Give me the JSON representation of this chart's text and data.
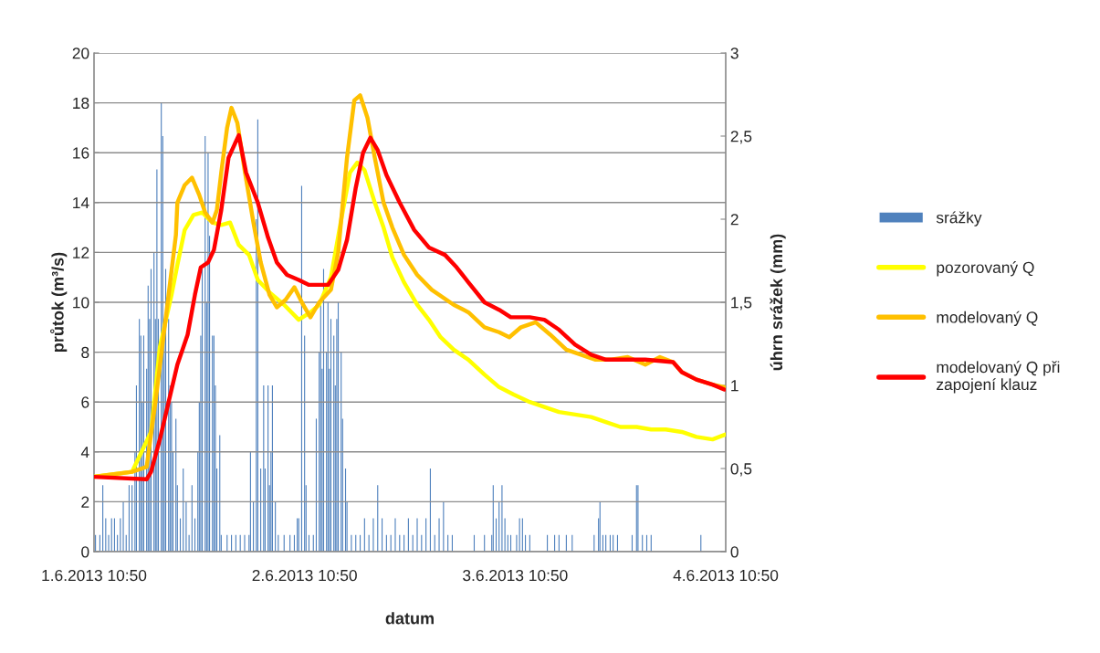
{
  "chart_data": {
    "type": "line",
    "xlabel": "datum",
    "ylabel": "průtok (m³/s)",
    "y2label": "úhrn srážek (mm)",
    "xlim": [
      "2013-06-01T10:50",
      "2013-06-04T10:50"
    ],
    "xticks": [
      {
        "value": "2013-06-01T10:50",
        "label": "1.6.2013 10:50"
      },
      {
        "value": "2013-06-02T10:50",
        "label": "2.6.2013 10:50"
      },
      {
        "value": "2013-06-03T10:50",
        "label": "3.6.2013 10:50"
      },
      {
        "value": "2013-06-04T10:50",
        "label": "4.6.2013 10:50"
      }
    ],
    "ylim": [
      0,
      20
    ],
    "yticks": [
      0,
      2,
      4,
      6,
      8,
      10,
      12,
      14,
      16,
      18,
      20
    ],
    "y2lim": [
      0,
      3
    ],
    "y2ticks": [
      0,
      {
        "value": 0.5,
        "label": "0,5"
      },
      1,
      {
        "value": 1.5,
        "label": "1,5"
      },
      2,
      {
        "value": 2.5,
        "label": "2,5"
      },
      3
    ],
    "grid": "y",
    "legend": "right",
    "series": [
      {
        "name": "srážky",
        "type": "bar",
        "axis": "y2",
        "color": "#4f81bd",
        "x": [
          "2013-06-01T11:00",
          "2013-06-01T11:30",
          "2013-06-01T11:50",
          "2013-06-01T12:10",
          "2013-06-01T12:30",
          "2013-06-01T12:50",
          "2013-06-01T13:10",
          "2013-06-01T13:30",
          "2013-06-01T13:50",
          "2013-06-01T14:10",
          "2013-06-01T14:30",
          "2013-06-01T14:50",
          "2013-06-01T15:10",
          "2013-06-01T15:30",
          "2013-06-01T15:40",
          "2013-06-01T16:00",
          "2013-06-01T16:10",
          "2013-06-01T16:20",
          "2013-06-01T16:30",
          "2013-06-01T16:50",
          "2013-06-01T17:00",
          "2013-06-01T17:10",
          "2013-06-01T17:20",
          "2013-06-01T17:40",
          "2013-06-01T17:50",
          "2013-06-01T18:00",
          "2013-06-01T18:10",
          "2013-06-01T18:30",
          "2013-06-01T18:40",
          "2013-06-01T18:50",
          "2013-06-01T19:00",
          "2013-06-01T19:20",
          "2013-06-01T19:30",
          "2013-06-01T19:40",
          "2013-06-01T19:50",
          "2013-06-01T20:10",
          "2013-06-01T20:20",
          "2013-06-01T20:40",
          "2013-06-01T21:00",
          "2013-06-01T21:20",
          "2013-06-01T21:40",
          "2013-06-01T22:00",
          "2013-06-01T22:20",
          "2013-06-01T22:40",
          "2013-06-01T22:50",
          "2013-06-01T23:00",
          "2013-06-01T23:10",
          "2013-06-01T23:30",
          "2013-06-01T23:40",
          "2013-06-01T23:50",
          "2013-06-02T00:00",
          "2013-06-02T00:20",
          "2013-06-02T00:30",
          "2013-06-02T00:40",
          "2013-06-02T00:50",
          "2013-06-02T01:10",
          "2013-06-02T01:20",
          "2013-06-02T02:00",
          "2013-06-02T02:30",
          "2013-06-02T03:00",
          "2013-06-02T03:30",
          "2013-06-02T04:00",
          "2013-06-02T04:30",
          "2013-06-02T04:40",
          "2013-06-02T05:00",
          "2013-06-02T05:20",
          "2013-06-02T05:30",
          "2013-06-02T05:50",
          "2013-06-02T06:10",
          "2013-06-02T06:20",
          "2013-06-02T06:40",
          "2013-06-02T06:50",
          "2013-06-02T07:00",
          "2013-06-02T07:10",
          "2013-06-02T07:30",
          "2013-06-02T07:50",
          "2013-06-02T08:30",
          "2013-06-02T09:10",
          "2013-06-02T09:40",
          "2013-06-02T10:00",
          "2013-06-02T10:10",
          "2013-06-02T10:30",
          "2013-06-02T10:50",
          "2013-06-02T11:00",
          "2013-06-02T11:20",
          "2013-06-02T11:50",
          "2013-06-02T12:10",
          "2013-06-02T12:30",
          "2013-06-02T12:40",
          "2013-06-02T12:50",
          "2013-06-02T13:00",
          "2013-06-02T13:20",
          "2013-06-02T13:30",
          "2013-06-02T13:40",
          "2013-06-02T13:50",
          "2013-06-02T14:10",
          "2013-06-02T14:20",
          "2013-06-02T14:30",
          "2013-06-02T14:40",
          "2013-06-02T15:00",
          "2013-06-02T15:10",
          "2013-06-02T15:30",
          "2013-06-02T15:40",
          "2013-06-02T16:10",
          "2013-06-02T16:40",
          "2013-06-02T17:10",
          "2013-06-02T17:40",
          "2013-06-02T18:10",
          "2013-06-02T18:40",
          "2013-06-02T19:10",
          "2013-06-02T19:40",
          "2013-06-02T20:10",
          "2013-06-02T20:40",
          "2013-06-02T21:10",
          "2013-06-02T21:40",
          "2013-06-02T22:10",
          "2013-06-02T22:40",
          "2013-06-02T23:10",
          "2013-06-02T23:40",
          "2013-06-03T00:10",
          "2013-06-03T00:40",
          "2013-06-03T01:10",
          "2013-06-03T01:40",
          "2013-06-03T02:10",
          "2013-06-03T02:40",
          "2013-06-03T03:10",
          "2013-06-03T03:40",
          "2013-06-03T06:10",
          "2013-06-03T07:20",
          "2013-06-03T08:10",
          "2013-06-03T08:20",
          "2013-06-03T08:40",
          "2013-06-03T09:00",
          "2013-06-03T09:20",
          "2013-06-03T09:40",
          "2013-06-03T10:00",
          "2013-06-03T10:20",
          "2013-06-03T11:00",
          "2013-06-03T11:20",
          "2013-06-03T11:40",
          "2013-06-03T12:00",
          "2013-06-03T12:30",
          "2013-06-03T14:30",
          "2013-06-03T15:20",
          "2013-06-03T15:50",
          "2013-06-03T16:40",
          "2013-06-03T17:20",
          "2013-06-03T19:50",
          "2013-06-03T20:20",
          "2013-06-03T20:30",
          "2013-06-03T20:50",
          "2013-06-03T21:10",
          "2013-06-03T21:40",
          "2013-06-03T22:00",
          "2013-06-03T22:30",
          "2013-06-04T00:10",
          "2013-06-04T00:40",
          "2013-06-04T00:50",
          "2013-06-04T01:20",
          "2013-06-04T01:50",
          "2013-06-04T02:20",
          "2013-06-04T08:00"
        ],
        "values": [
          0.1,
          0.1,
          0.4,
          0.2,
          0.1,
          0.2,
          0.2,
          0.1,
          0.2,
          0.3,
          0.1,
          0.4,
          0.4,
          0.6,
          1.0,
          1.4,
          1.3,
          0.9,
          1.3,
          1.1,
          1.6,
          1.4,
          1.7,
          1.8,
          1.4,
          2.3,
          1.4,
          2.7,
          2.5,
          1.4,
          1.7,
          1.4,
          1.0,
          0.9,
          0.6,
          0.8,
          0.4,
          0.2,
          0.5,
          0.3,
          0.1,
          0.4,
          0.2,
          0.6,
          0.9,
          1.3,
          1.7,
          2.5,
          1.5,
          2.4,
          1.9,
          1.3,
          1.3,
          1.0,
          0.5,
          0.7,
          0.1,
          0.1,
          0.1,
          0.1,
          0.1,
          0.1,
          0.1,
          0.6,
          0.3,
          2.0,
          2.6,
          0.5,
          1.0,
          0.5,
          1.0,
          0.4,
          0.6,
          1.0,
          0.3,
          0.1,
          0.1,
          0.1,
          0.1,
          0.2,
          0.2,
          2.2,
          1.3,
          0.4,
          0.1,
          0.1,
          0.8,
          1.2,
          1.5,
          1.1,
          1.7,
          1.2,
          1.5,
          1.1,
          1.4,
          1.3,
          1.0,
          1.4,
          1.5,
          1.2,
          0.8,
          0.5,
          0.3,
          0.1,
          0.1,
          0.1,
          0.2,
          0.1,
          0.2,
          0.4,
          0.2,
          0.1,
          0.1,
          0.2,
          0.1,
          0.1,
          0.2,
          0.1,
          0.2,
          0.1,
          0.2,
          0.5,
          0.1,
          0.2,
          0.3,
          0.1,
          0.1,
          0.1,
          0.1,
          0.1,
          0.4,
          0.2,
          0.3,
          0.4,
          0.2,
          0.1,
          0.1,
          0.1,
          0.2,
          0.2,
          0.1,
          0.1,
          0.1,
          0.1,
          0.1,
          0.1,
          0.1,
          0.1,
          0.2,
          0.3,
          0.1,
          0.1,
          0.1,
          0.1,
          0.1,
          0.1,
          0.4,
          0.4,
          0.1,
          0.1,
          0.1,
          0.1
        ]
      },
      {
        "name": "pozorovaný Q",
        "color": "#ffff00",
        "x": [
          "2013-06-01T10:50",
          "2013-06-01T15:10",
          "2013-06-01T17:20",
          "2013-06-01T18:20",
          "2013-06-01T19:40",
          "2013-06-01T20:20",
          "2013-06-01T21:10",
          "2013-06-01T22:10",
          "2013-06-01T23:10",
          "2013-06-02T00:20",
          "2013-06-02T01:20",
          "2013-06-02T02:20",
          "2013-06-02T03:20",
          "2013-06-02T04:30",
          "2013-06-02T05:30",
          "2013-06-02T06:50",
          "2013-06-02T08:30",
          "2013-06-02T10:10",
          "2013-06-02T11:30",
          "2013-06-02T12:30",
          "2013-06-02T13:50",
          "2013-06-02T15:00",
          "2013-06-02T16:00",
          "2013-06-02T16:50",
          "2013-06-02T17:40",
          "2013-06-02T18:50",
          "2013-06-02T19:50",
          "2013-06-02T20:50",
          "2013-06-02T22:10",
          "2013-06-02T23:40",
          "2013-06-03T01:00",
          "2013-06-03T02:20",
          "2013-06-03T03:50",
          "2013-06-03T05:30",
          "2013-06-03T07:20",
          "2013-06-03T09:00",
          "2013-06-03T10:40",
          "2013-06-03T12:30",
          "2013-06-03T14:10",
          "2013-06-03T15:50",
          "2013-06-03T17:40",
          "2013-06-03T19:30",
          "2013-06-03T21:10",
          "2013-06-03T22:50",
          "2013-06-04T00:40",
          "2013-06-04T02:20",
          "2013-06-04T04:00",
          "2013-06-04T05:50",
          "2013-06-04T07:30",
          "2013-06-04T09:20",
          "2013-06-04T10:50"
        ],
        "values": [
          3.0,
          3.2,
          4.8,
          8.2,
          10.3,
          11.5,
          12.9,
          13.5,
          13.6,
          13.2,
          13.1,
          13.2,
          12.3,
          11.9,
          10.9,
          10.4,
          9.9,
          9.3,
          9.6,
          9.9,
          11.0,
          13.3,
          15.2,
          15.6,
          15.3,
          14.0,
          13.0,
          11.8,
          10.8,
          9.9,
          9.3,
          8.6,
          8.1,
          7.7,
          7.1,
          6.6,
          6.3,
          6.0,
          5.8,
          5.6,
          5.5,
          5.4,
          5.2,
          5.0,
          5.0,
          4.9,
          4.9,
          4.8,
          4.6,
          4.5,
          4.7
        ]
      },
      {
        "name": "modelovaný Q",
        "color": "#ffc000",
        "x": [
          "2013-06-01T10:50",
          "2013-06-01T15:10",
          "2013-06-01T16:50",
          "2013-06-01T17:50",
          "2013-06-01T19:20",
          "2013-06-01T20:10",
          "2013-06-01T20:20",
          "2013-06-01T21:10",
          "2013-06-01T22:00",
          "2013-06-01T22:50",
          "2013-06-01T23:30",
          "2013-06-02T00:20",
          "2013-06-02T00:50",
          "2013-06-02T01:20",
          "2013-06-02T02:00",
          "2013-06-02T02:30",
          "2013-06-02T03:10",
          "2013-06-02T04:00",
          "2013-06-02T05:00",
          "2013-06-02T05:50",
          "2013-06-02T06:50",
          "2013-06-02T07:40",
          "2013-06-02T08:40",
          "2013-06-02T09:40",
          "2013-06-02T10:40",
          "2013-06-02T11:30",
          "2013-06-02T12:30",
          "2013-06-02T13:50",
          "2013-06-02T14:40",
          "2013-06-02T15:40",
          "2013-06-02T16:30",
          "2013-06-02T17:10",
          "2013-06-02T18:00",
          "2013-06-02T18:50",
          "2013-06-02T19:50",
          "2013-06-02T20:50",
          "2013-06-02T22:10",
          "2013-06-02T23:40",
          "2013-06-03T01:20",
          "2013-06-03T03:50",
          "2013-06-03T05:30",
          "2013-06-03T07:20",
          "2013-06-03T09:00",
          "2013-06-03T10:10",
          "2013-06-03T11:30",
          "2013-06-03T13:10",
          "2013-06-03T14:50",
          "2013-06-03T16:40",
          "2013-06-03T18:20",
          "2013-06-03T20:00",
          "2013-06-03T21:50",
          "2013-06-03T23:40",
          "2013-06-04T01:40",
          "2013-06-04T03:20",
          "2013-06-04T04:50",
          "2013-06-04T05:50",
          "2013-06-04T07:30",
          "2013-06-04T09:20",
          "2013-06-04T10:40"
        ],
        "values": [
          3.0,
          3.2,
          3.4,
          6.0,
          10.3,
          12.7,
          14.0,
          14.7,
          15.0,
          14.3,
          13.6,
          13.2,
          13.7,
          15.2,
          17.0,
          17.8,
          17.2,
          15.3,
          13.2,
          11.6,
          10.3,
          9.8,
          10.1,
          10.6,
          9.9,
          9.4,
          10.0,
          10.5,
          12.0,
          15.8,
          18.1,
          18.3,
          17.4,
          15.8,
          14.0,
          13.0,
          11.9,
          11.1,
          10.5,
          9.9,
          9.6,
          9.0,
          8.8,
          8.6,
          9.0,
          9.2,
          8.7,
          8.1,
          7.9,
          7.7,
          7.7,
          7.8,
          7.5,
          7.8,
          7.6,
          7.2,
          6.9,
          6.7,
          6.6
        ]
      },
      {
        "name": "modelovaný Q při\nzapojení klauz",
        "color": "#ff0000",
        "x": [
          "2013-06-01T10:50",
          "2013-06-01T16:50",
          "2013-06-01T17:20",
          "2013-06-01T18:20",
          "2013-06-01T19:20",
          "2013-06-01T20:20",
          "2013-06-01T21:30",
          "2013-06-01T22:20",
          "2013-06-01T23:00",
          "2013-06-01T23:50",
          "2013-06-02T00:30",
          "2013-06-02T01:20",
          "2013-06-02T02:10",
          "2013-06-02T03:20",
          "2013-06-02T04:10",
          "2013-06-02T05:30",
          "2013-06-02T06:40",
          "2013-06-02T07:40",
          "2013-06-02T08:50",
          "2013-06-02T10:10",
          "2013-06-02T11:20",
          "2013-06-02T13:30",
          "2013-06-02T14:40",
          "2013-06-02T15:40",
          "2013-06-02T16:40",
          "2013-06-02T17:30",
          "2013-06-02T18:20",
          "2013-06-02T19:10",
          "2013-06-02T20:10",
          "2013-06-02T21:40",
          "2013-06-02T23:20",
          "2013-06-03T01:00",
          "2013-06-03T02:50",
          "2013-06-03T04:10",
          "2013-06-03T05:30",
          "2013-06-03T07:20",
          "2013-06-03T09:00",
          "2013-06-03T10:20",
          "2013-06-03T12:30",
          "2013-06-03T14:10",
          "2013-06-03T15:50",
          "2013-06-03T17:40",
          "2013-06-03T19:30",
          "2013-06-03T21:10",
          "2013-06-03T22:50",
          "2013-06-04T01:40",
          "2013-06-04T04:50",
          "2013-06-04T05:50",
          "2013-06-04T07:30",
          "2013-06-04T09:20",
          "2013-06-04T10:40"
        ],
        "values": [
          3.0,
          2.9,
          3.2,
          4.5,
          6.0,
          7.5,
          8.7,
          10.3,
          11.4,
          11.6,
          12.1,
          13.7,
          15.8,
          16.7,
          15.2,
          14.0,
          12.6,
          11.6,
          11.1,
          10.9,
          10.7,
          10.7,
          11.3,
          12.5,
          14.6,
          16.0,
          16.6,
          16.1,
          15.1,
          14.0,
          12.9,
          12.2,
          11.9,
          11.4,
          10.8,
          10.0,
          9.7,
          9.4,
          9.4,
          9.3,
          8.9,
          8.3,
          7.9,
          7.7,
          7.7,
          7.7,
          7.6,
          7.2,
          6.9,
          6.7,
          6.5
        ]
      }
    ]
  }
}
